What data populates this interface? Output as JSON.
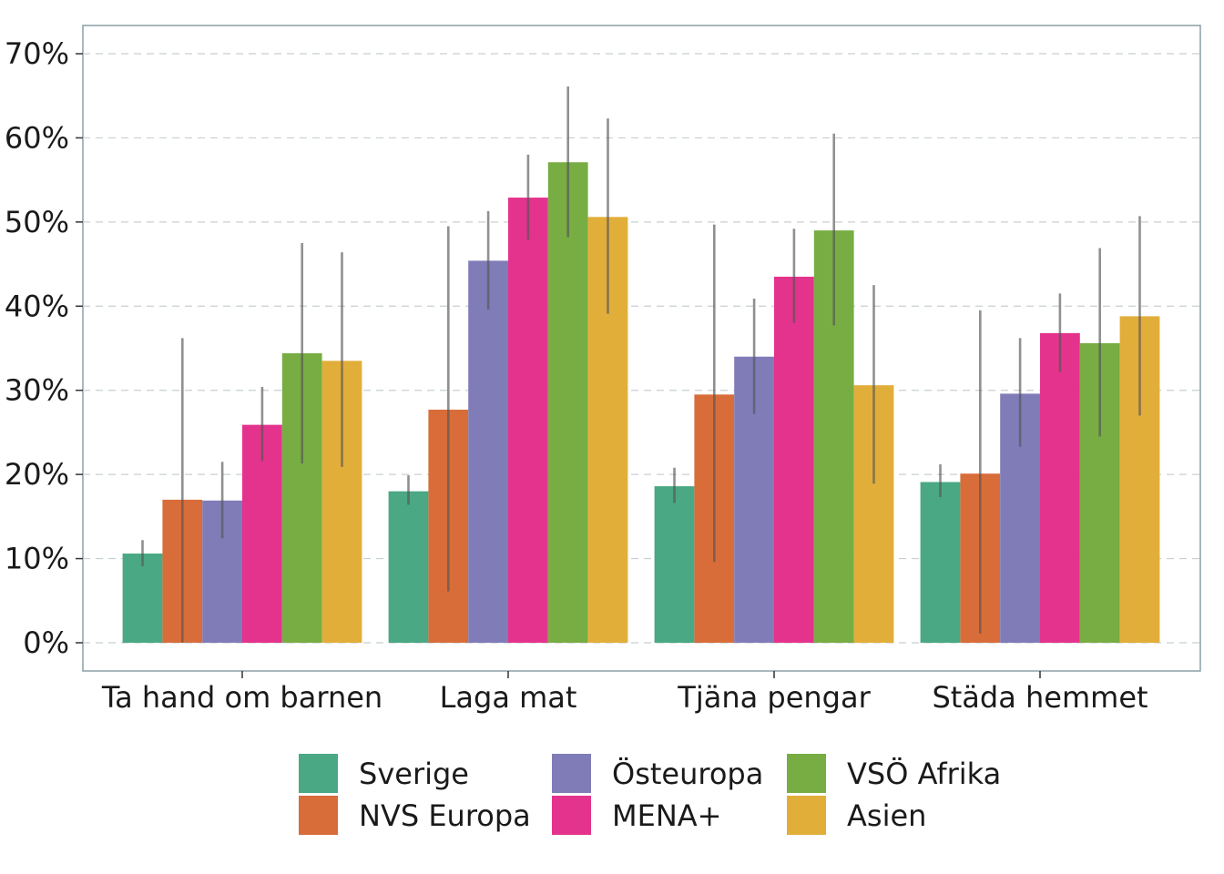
{
  "chart_data": {
    "type": "bar",
    "categories": [
      "Ta hand om barnen",
      "Laga mat",
      "Tjäna pengar",
      "Städa hemmet"
    ],
    "series": [
      {
        "name": "Sverige",
        "color": "#4aa884",
        "values": [
          10.6,
          18.0,
          18.6,
          19.1
        ],
        "ci_low": [
          9.1,
          16.4,
          16.6,
          17.3
        ],
        "ci_high": [
          12.2,
          19.9,
          20.8,
          21.2
        ]
      },
      {
        "name": "NVS Europa",
        "color": "#d86d3a",
        "values": [
          17.0,
          27.7,
          29.5,
          20.1
        ],
        "ci_low": [
          0.0,
          6.1,
          9.6,
          1.1
        ],
        "ci_high": [
          36.2,
          49.5,
          49.7,
          39.5
        ]
      },
      {
        "name": "Östeuropa",
        "color": "#807cb8",
        "values": [
          16.9,
          45.4,
          34.0,
          29.6
        ],
        "ci_low": [
          12.4,
          39.6,
          27.2,
          23.3
        ],
        "ci_high": [
          21.5,
          51.3,
          40.9,
          36.2
        ]
      },
      {
        "name": "MENA+",
        "color": "#e4338d",
        "values": [
          25.9,
          52.9,
          43.5,
          36.8
        ],
        "ci_low": [
          21.6,
          47.9,
          38.0,
          32.2
        ],
        "ci_high": [
          30.4,
          58.0,
          49.2,
          41.5
        ]
      },
      {
        "name": "VSÖ Afrika",
        "color": "#77ad43",
        "values": [
          34.4,
          57.1,
          49.0,
          35.6
        ],
        "ci_low": [
          21.3,
          48.2,
          37.7,
          24.5
        ],
        "ci_high": [
          47.5,
          66.1,
          60.5,
          46.9
        ]
      },
      {
        "name": "Asien",
        "color": "#e2ae3a",
        "values": [
          33.5,
          50.6,
          30.6,
          38.8
        ],
        "ci_low": [
          20.9,
          39.1,
          18.9,
          27.0
        ],
        "ci_high": [
          46.4,
          62.3,
          42.5,
          50.7
        ]
      }
    ],
    "ylim": [
      0,
      70
    ],
    "yticks": [
      0,
      10,
      20,
      30,
      40,
      50,
      60,
      70
    ],
    "ytick_labels": [
      "0%",
      "10%",
      "20%",
      "30%",
      "40%",
      "50%",
      "60%",
      "70%"
    ],
    "grid": "horizontal dashed",
    "legend_position": "bottom",
    "title": "",
    "xlabel": "",
    "ylabel": ""
  }
}
